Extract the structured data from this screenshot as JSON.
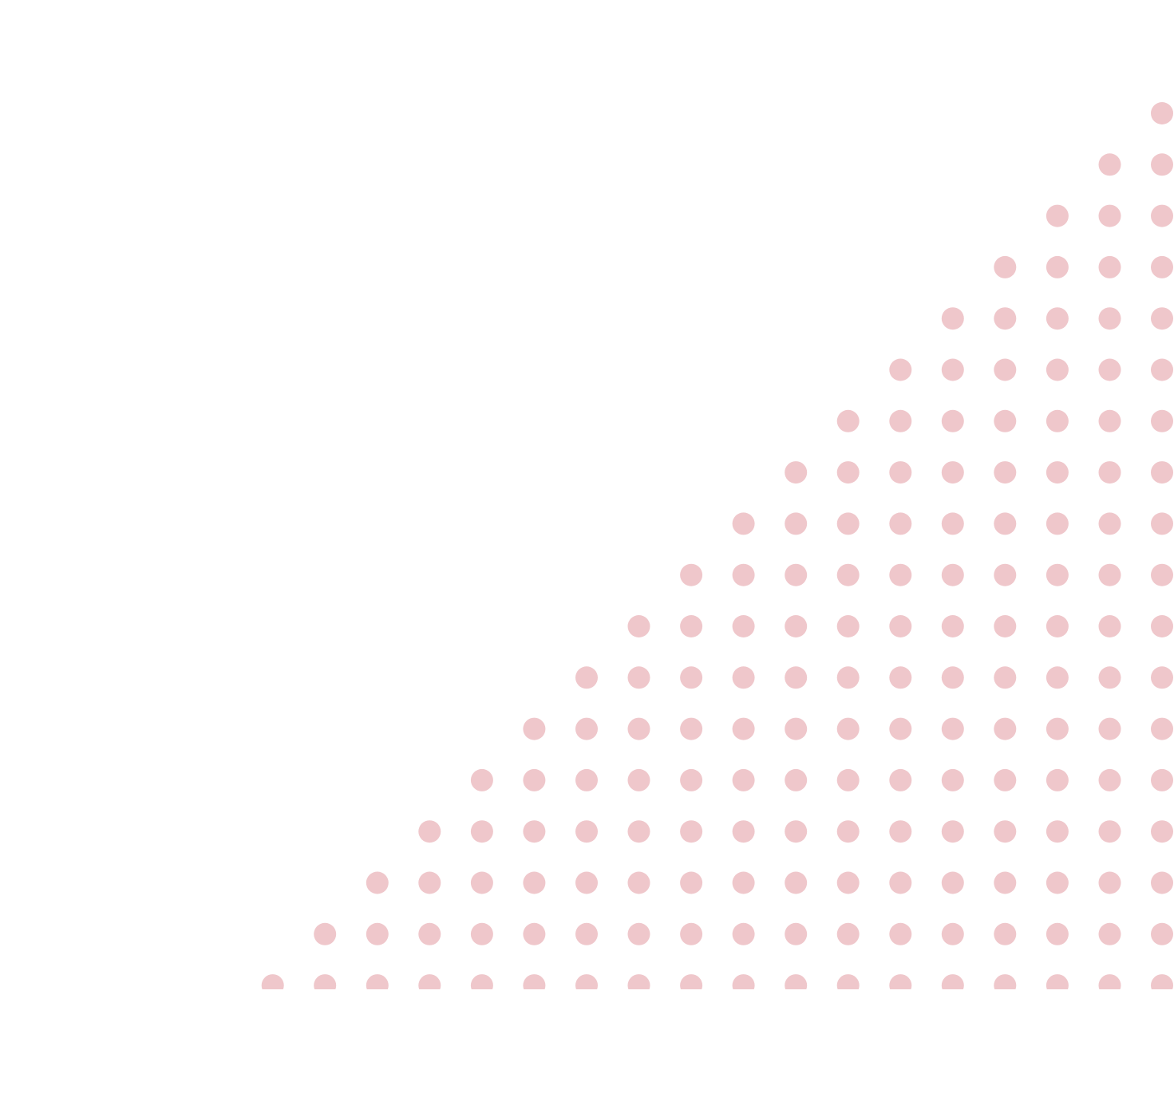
{
  "pattern": {
    "shape": "right-triangle-dot-grid",
    "orientation": "top-right-to-bottom-left",
    "row_count": 18,
    "dot_color": "#efc7cb",
    "background_color": "#ffffff"
  }
}
